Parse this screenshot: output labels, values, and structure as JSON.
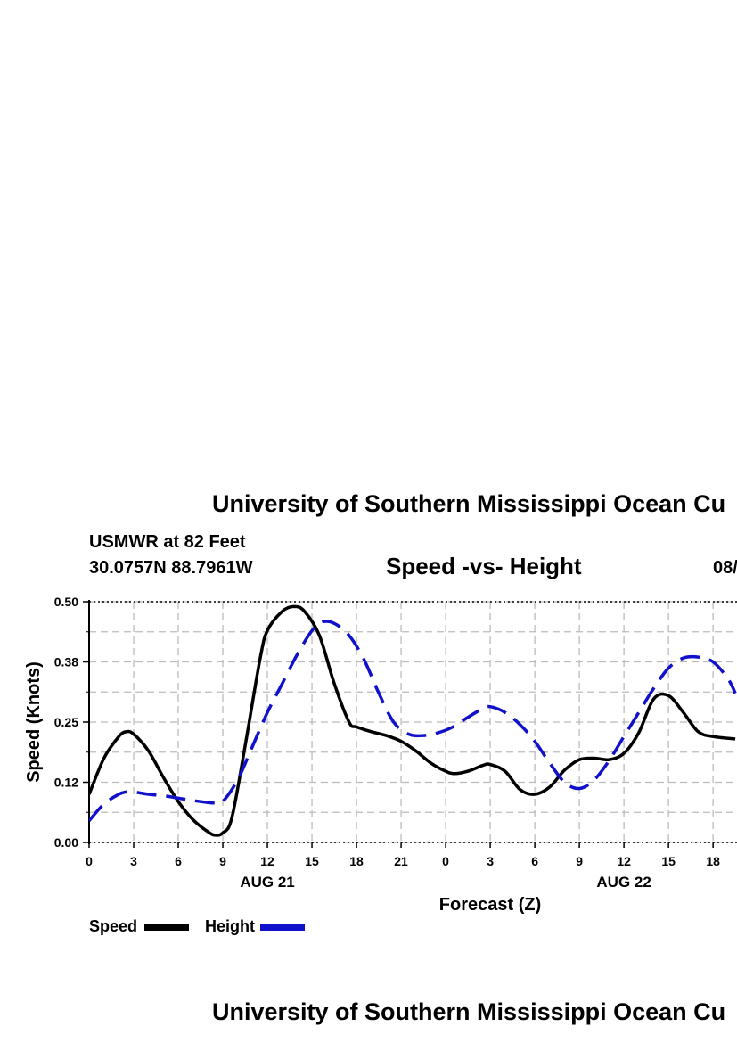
{
  "header": {
    "title": "University of Southern Mississippi Ocean Cu",
    "station": "USMWR at 82 Feet",
    "coords": "30.0757N  88.7961W",
    "plot_title": "Speed -vs- Height",
    "date_fragment": "08/"
  },
  "footer": {
    "title": "University of Southern Mississippi Ocean Cu"
  },
  "legend": {
    "speed_label": "Speed",
    "height_label": "Height"
  },
  "colors": {
    "speed": "#000000",
    "height": "#1111cc",
    "grid": "#bbbbbb"
  },
  "chart_data": {
    "type": "line",
    "title": "Speed -vs- Height",
    "xlabel": "Forecast (Z)",
    "ylabel": "Speed (Knots)",
    "ylim": [
      0,
      0.5
    ],
    "xlim": [
      0,
      43.5
    ],
    "grid": true,
    "y_ticks": [
      "0.00",
      "0.12",
      "0.25",
      "0.38",
      "0.50"
    ],
    "y_tick_values": [
      0,
      0.125,
      0.25,
      0.375,
      0.5
    ],
    "x_ticks": [
      {
        "hour": 0,
        "label": "0"
      },
      {
        "hour": 3,
        "label": "3"
      },
      {
        "hour": 6,
        "label": "6"
      },
      {
        "hour": 9,
        "label": "9"
      },
      {
        "hour": 12,
        "label": "12"
      },
      {
        "hour": 15,
        "label": "15"
      },
      {
        "hour": 18,
        "label": "18"
      },
      {
        "hour": 21,
        "label": "21"
      },
      {
        "hour": 24,
        "label": "0"
      },
      {
        "hour": 27,
        "label": "3"
      },
      {
        "hour": 30,
        "label": "6"
      },
      {
        "hour": 33,
        "label": "9"
      },
      {
        "hour": 36,
        "label": "12"
      },
      {
        "hour": 39,
        "label": "15"
      },
      {
        "hour": 42,
        "label": "18"
      }
    ],
    "date_labels": [
      {
        "hour": 12,
        "label": "AUG 21"
      },
      {
        "hour": 36,
        "label": "AUG 22"
      }
    ],
    "series": [
      {
        "name": "Speed",
        "style": "solid",
        "x": [
          0,
          1,
          2,
          2.5,
          3,
          4,
          5,
          6,
          7,
          8,
          8.5,
          9,
          9.6,
          10.5,
          11.5,
          12,
          13,
          13.8,
          14.5,
          15.5,
          16.5,
          17.5,
          18,
          19,
          20,
          21,
          22,
          23,
          24,
          24.6,
          25.5,
          26.5,
          27,
          28,
          29,
          30,
          31,
          32,
          33,
          34,
          35,
          36,
          37,
          38,
          39,
          40,
          41,
          42,
          43.5
        ],
        "values": [
          0.1,
          0.175,
          0.22,
          0.23,
          0.225,
          0.19,
          0.135,
          0.085,
          0.047,
          0.022,
          0.015,
          0.02,
          0.05,
          0.2,
          0.38,
          0.44,
          0.48,
          0.49,
          0.48,
          0.43,
          0.33,
          0.25,
          0.24,
          0.23,
          0.222,
          0.21,
          0.19,
          0.165,
          0.148,
          0.143,
          0.148,
          0.16,
          0.162,
          0.148,
          0.11,
          0.1,
          0.115,
          0.15,
          0.172,
          0.175,
          0.172,
          0.185,
          0.228,
          0.298,
          0.305,
          0.27,
          0.23,
          0.22,
          0.215
        ]
      },
      {
        "name": "Height",
        "style": "dashed",
        "x": [
          0,
          1,
          2,
          2.5,
          3,
          4,
          5,
          6,
          7,
          8,
          8.5,
          9,
          10,
          11,
          12,
          13,
          14,
          15,
          15.7,
          16.5,
          17.5,
          18.5,
          19.5,
          20.5,
          21.5,
          22.5,
          23.5,
          24.5,
          25.5,
          26.5,
          27,
          28,
          29,
          30,
          31,
          32,
          33,
          34,
          35,
          36,
          37,
          38,
          39,
          40,
          41,
          42,
          43,
          43.5
        ],
        "values": [
          0.045,
          0.08,
          0.1,
          0.105,
          0.105,
          0.1,
          0.097,
          0.092,
          0.087,
          0.083,
          0.082,
          0.085,
          0.13,
          0.2,
          0.27,
          0.33,
          0.39,
          0.44,
          0.458,
          0.455,
          0.43,
          0.38,
          0.31,
          0.25,
          0.225,
          0.222,
          0.228,
          0.24,
          0.26,
          0.278,
          0.282,
          0.27,
          0.245,
          0.21,
          0.165,
          0.125,
          0.112,
          0.13,
          0.17,
          0.22,
          0.27,
          0.32,
          0.362,
          0.383,
          0.385,
          0.375,
          0.34,
          0.31
        ]
      }
    ]
  }
}
